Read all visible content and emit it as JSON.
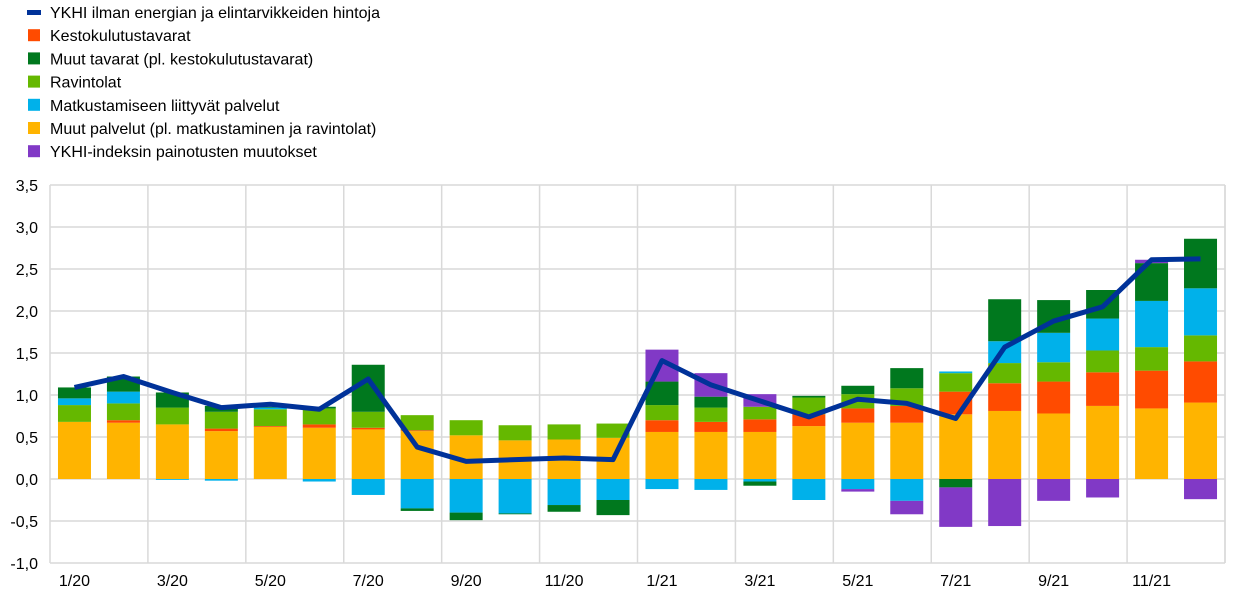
{
  "chart_data": {
    "type": "bar",
    "stacked": true,
    "title": "",
    "xlabel": "",
    "ylabel": "",
    "ylim": [
      -1.0,
      3.5
    ],
    "yticks": [
      "-1,0",
      "-0,5",
      "0,0",
      "0,5",
      "1,0",
      "1,5",
      "2,0",
      "2,5",
      "3,0",
      "3,5"
    ],
    "grid": true,
    "legend_position": "top-left",
    "categories": [
      "1/20",
      "2/20",
      "3/20",
      "4/20",
      "5/20",
      "6/20",
      "7/20",
      "8/20",
      "9/20",
      "10/20",
      "11/20",
      "12/20",
      "1/21",
      "2/21",
      "3/21",
      "4/21",
      "5/21",
      "6/21",
      "7/21",
      "8/21",
      "9/21",
      "10/21",
      "11/21",
      "12/21"
    ],
    "xtick_labels": [
      "1/20",
      "3/20",
      "5/20",
      "7/20",
      "9/20",
      "11/20",
      "1/21",
      "3/21",
      "5/21",
      "7/21",
      "9/21",
      "11/21"
    ],
    "line": {
      "name": "YKHI ilman energian ja elintarvikkeiden hintoja",
      "color": "#003299",
      "values": [
        1.09,
        1.22,
        1.03,
        0.85,
        0.89,
        0.83,
        1.19,
        0.38,
        0.21,
        0.23,
        0.25,
        0.23,
        1.41,
        1.12,
        0.93,
        0.74,
        0.95,
        0.9,
        0.72,
        1.57,
        1.88,
        2.05,
        2.61,
        2.62
      ]
    },
    "series": [
      {
        "name": "Kestokulutustavarat",
        "color": "#FF4B00",
        "values": [
          0,
          0.03,
          0,
          0.03,
          0.01,
          0.04,
          0.02,
          0.01,
          0,
          0,
          0,
          0,
          0.14,
          0.12,
          0.15,
          0.14,
          0.17,
          0.2,
          0.27,
          0.33,
          0.38,
          0.4,
          0.45,
          0.49
        ]
      },
      {
        "name": "Muut tavarat (pl. kestokulutustavarat)",
        "color": "#00781E",
        "values": [
          0.13,
          0.18,
          0.18,
          0.07,
          0.01,
          0.02,
          0.56,
          -0.03,
          -0.09,
          -0.01,
          -0.08,
          -0.18,
          0.28,
          0.13,
          -0.05,
          0.02,
          0.1,
          0.24,
          -0.1,
          0.5,
          0.39,
          0.34,
          0.45,
          0.59
        ]
      },
      {
        "name": "Ravintolat",
        "color": "#65B800",
        "values": [
          0.2,
          0.2,
          0.2,
          0.2,
          0.2,
          0.19,
          0.19,
          0.18,
          0.18,
          0.18,
          0.18,
          0.17,
          0.18,
          0.17,
          0.15,
          0.2,
          0.17,
          0.21,
          0.22,
          0.24,
          0.23,
          0.26,
          0.28,
          0.31
        ]
      },
      {
        "name": "Matkustamiseen liittyvät palvelut",
        "color": "#00B1EA",
        "values": [
          0.08,
          0.14,
          -0.01,
          -0.02,
          0.02,
          -0.03,
          -0.19,
          -0.35,
          -0.4,
          -0.41,
          -0.31,
          -0.25,
          -0.12,
          -0.13,
          -0.03,
          -0.25,
          -0.12,
          -0.26,
          0.02,
          0.26,
          0.35,
          0.38,
          0.55,
          0.56
        ]
      },
      {
        "name": "Muut palvelut (pl. matkustaminen ja ravintolat)",
        "color": "#FFB400",
        "values": [
          0.68,
          0.67,
          0.65,
          0.57,
          0.62,
          0.61,
          0.59,
          0.57,
          0.52,
          0.46,
          0.47,
          0.49,
          0.56,
          0.56,
          0.56,
          0.63,
          0.67,
          0.67,
          0.77,
          0.81,
          0.78,
          0.87,
          0.84,
          0.91
        ]
      },
      {
        "name": "YKHI-indeksin painotusten muutokset",
        "color": "#8139C6",
        "values": [
          0,
          0,
          0,
          0,
          0,
          0,
          0,
          0,
          0,
          0,
          0,
          0,
          0.38,
          0.28,
          0.15,
          0,
          -0.03,
          -0.16,
          -0.47,
          -0.56,
          -0.26,
          -0.22,
          0.04,
          -0.24
        ]
      }
    ],
    "stack_order": [
      4,
      0,
      2,
      3,
      1,
      5
    ],
    "legend": [
      {
        "label": "YKHI ilman energian ja elintarvikkeiden hintoja",
        "color": "#003299",
        "kind": "line"
      },
      {
        "label": "Kestokulutustavarat",
        "color": "#FF4B00",
        "kind": "box"
      },
      {
        "label": "Muut tavarat (pl. kestokulutustavarat)",
        "color": "#00781E",
        "kind": "box"
      },
      {
        "label": "Ravintolat",
        "color": "#65B800",
        "kind": "box"
      },
      {
        "label": "Matkustamiseen liittyvät palvelut",
        "color": "#00B1EA",
        "kind": "box"
      },
      {
        "label": "Muut palvelut (pl. matkustaminen ja ravintolat)",
        "color": "#FFB400",
        "kind": "box"
      },
      {
        "label": "YKHI-indeksin painotusten muutokset",
        "color": "#8139C6",
        "kind": "box"
      }
    ]
  }
}
